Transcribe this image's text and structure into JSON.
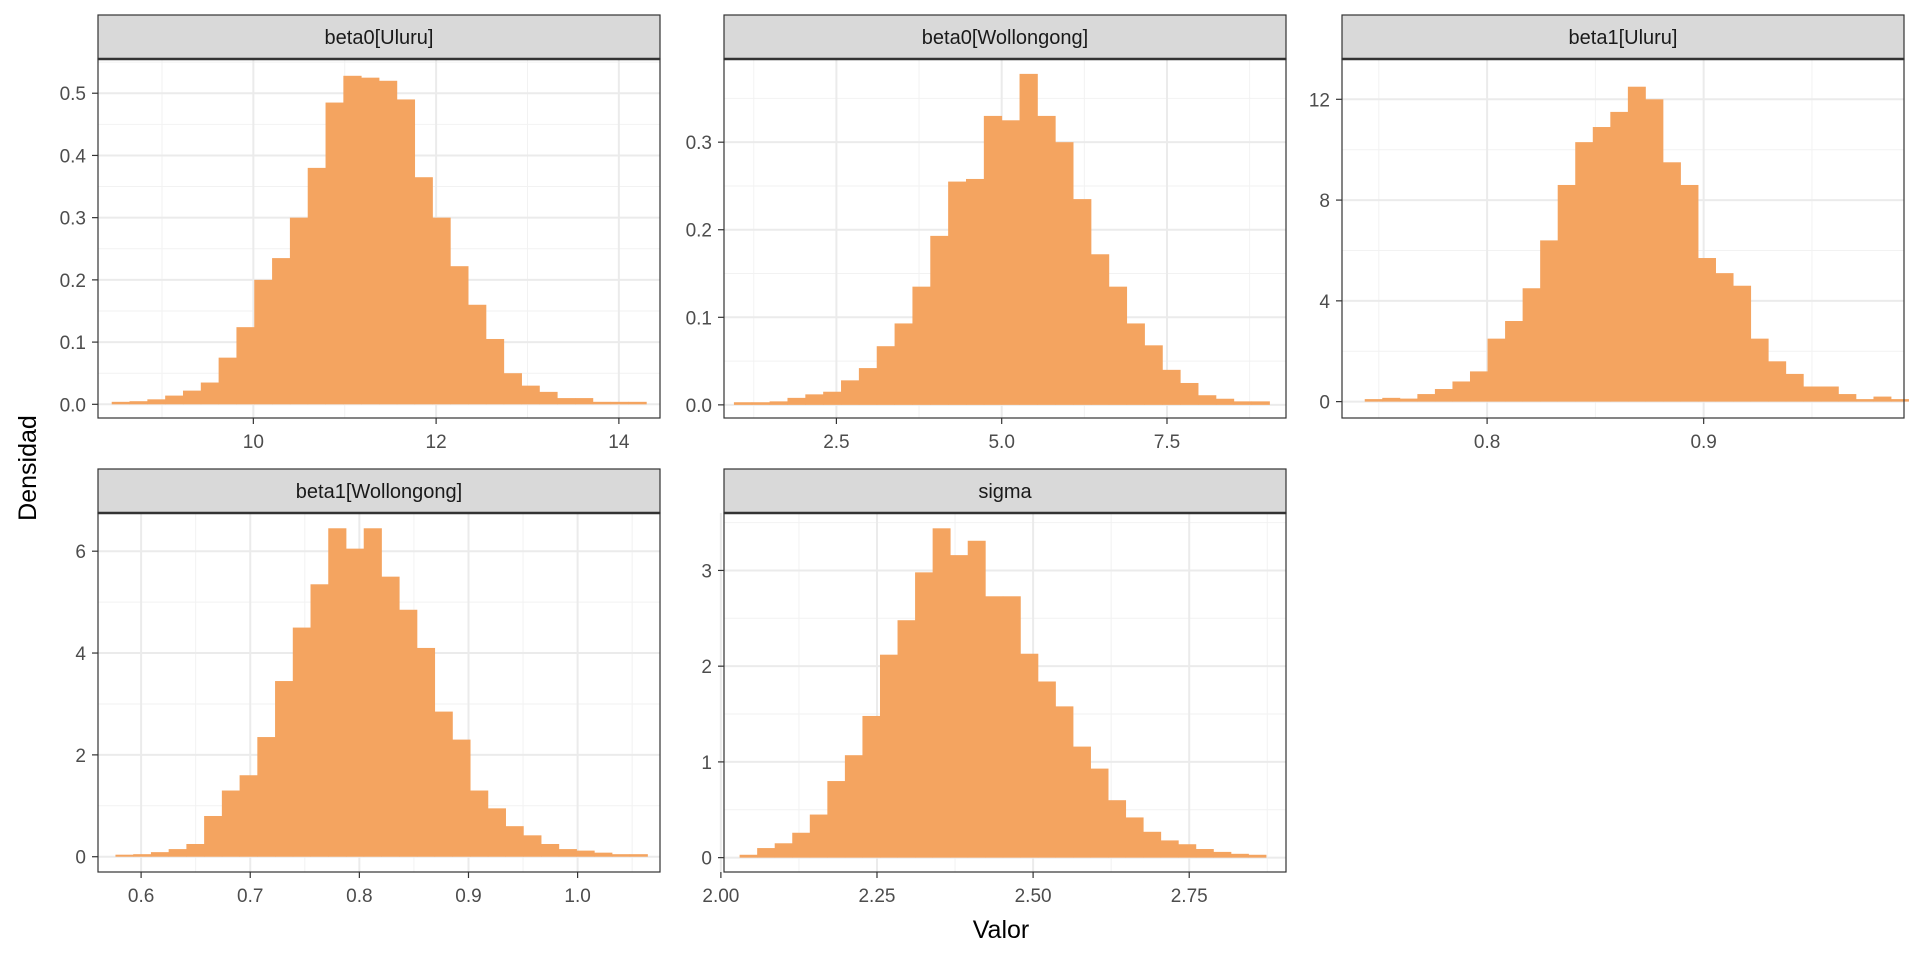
{
  "chart_data": {
    "type": "histogram_facets",
    "xlabel": "Valor",
    "ylabel": "Densidad",
    "grid": true,
    "bar_color": "#F4A460",
    "panels": [
      {
        "title": "beta0[Uluru]",
        "bin_start": 8.45,
        "bin_width": 0.195,
        "values": [
          0.004,
          0.005,
          0.008,
          0.014,
          0.022,
          0.035,
          0.075,
          0.124,
          0.2,
          0.235,
          0.3,
          0.38,
          0.485,
          0.528,
          0.525,
          0.52,
          0.49,
          0.365,
          0.3,
          0.222,
          0.16,
          0.105,
          0.05,
          0.03,
          0.02,
          0.01,
          0.01,
          0.004,
          0.004,
          0.004
        ],
        "xlim": [
          8.3,
          14.45
        ],
        "ylim": [
          -0.022,
          0.555
        ],
        "xticks": [
          10,
          12,
          14
        ],
        "xticklabels": [
          "10",
          "12",
          "14"
        ],
        "yticks": [
          0,
          0.1,
          0.2,
          0.3,
          0.4,
          0.5
        ],
        "yticklabels": [
          "0.0",
          "0.1",
          "0.2",
          "0.3",
          "0.4",
          "0.5"
        ]
      },
      {
        "title": "beta0[Wollongong]",
        "bin_start": 0.95,
        "bin_width": 0.27,
        "values": [
          0.003,
          0.003,
          0.004,
          0.008,
          0.012,
          0.015,
          0.028,
          0.042,
          0.067,
          0.093,
          0.135,
          0.193,
          0.255,
          0.258,
          0.33,
          0.325,
          0.378,
          0.33,
          0.3,
          0.235,
          0.172,
          0.135,
          0.093,
          0.068,
          0.04,
          0.025,
          0.011,
          0.007,
          0.004,
          0.004
        ],
        "xlim": [
          0.8,
          9.3
        ],
        "ylim": [
          -0.015,
          0.395
        ],
        "xticks": [
          2.5,
          5.0,
          7.5
        ],
        "xticklabels": [
          "2.5",
          "5.0",
          "7.5"
        ],
        "yticks": [
          0,
          0.1,
          0.2,
          0.3
        ],
        "yticklabels": [
          "0.0",
          "0.1",
          "0.2",
          "0.3"
        ]
      },
      {
        "title": "beta1[Uluru]",
        "bin_start": 0.7435,
        "bin_width": 0.0081,
        "values": [
          0.1,
          0.15,
          0.12,
          0.3,
          0.5,
          0.8,
          1.2,
          2.5,
          3.2,
          4.5,
          6.4,
          8.6,
          10.3,
          10.9,
          11.5,
          12.5,
          12.0,
          9.5,
          8.6,
          5.7,
          5.1,
          4.6,
          2.5,
          1.6,
          1.1,
          0.6,
          0.6,
          0.3,
          0.1,
          0.2,
          0.1
        ],
        "xlim": [
          0.733,
          0.9925
        ],
        "ylim": [
          -0.65,
          13.6
        ],
        "xticks": [
          0.8,
          0.9
        ],
        "xticklabels": [
          "0.8",
          "0.9"
        ],
        "yticks": [
          0,
          4,
          8,
          12
        ],
        "yticklabels": [
          "0",
          "4",
          "8",
          "12"
        ]
      },
      {
        "title": "beta1[Wollongong]",
        "bin_start": 0.5765,
        "bin_width": 0.01625,
        "values": [
          0.04,
          0.05,
          0.09,
          0.15,
          0.25,
          0.8,
          1.3,
          1.6,
          2.35,
          3.45,
          4.5,
          5.35,
          6.45,
          6.05,
          6.45,
          5.5,
          4.85,
          4.1,
          2.85,
          2.3,
          1.3,
          0.95,
          0.6,
          0.42,
          0.25,
          0.15,
          0.12,
          0.08,
          0.05,
          0.05
        ],
        "xlim": [
          0.5605,
          1.0755
        ],
        "ylim": [
          -0.3,
          6.75
        ],
        "xticks": [
          0.6,
          0.7,
          0.8,
          0.9,
          1.0
        ],
        "xticklabels": [
          "0.6",
          "0.7",
          "0.8",
          "0.9",
          "1.0"
        ],
        "yticks": [
          0,
          2,
          4,
          6
        ],
        "yticklabels": [
          "0",
          "2",
          "4",
          "6"
        ]
      },
      {
        "title": "sigma",
        "bin_start": 2.03,
        "bin_width": 0.0281,
        "values": [
          0.03,
          0.1,
          0.15,
          0.26,
          0.45,
          0.8,
          1.07,
          1.48,
          2.12,
          2.48,
          2.98,
          3.44,
          3.16,
          3.31,
          2.73,
          2.73,
          2.13,
          1.84,
          1.58,
          1.16,
          0.93,
          0.6,
          0.42,
          0.27,
          0.18,
          0.14,
          0.09,
          0.06,
          0.04,
          0.03
        ],
        "xlim": [
          2.005,
          2.905
        ],
        "ylim": [
          -0.15,
          3.6
        ],
        "xticks": [
          2.0,
          2.25,
          2.5,
          2.75
        ],
        "xticklabels": [
          "2.00",
          "2.25",
          "2.50",
          "2.75"
        ],
        "yticks": [
          0,
          1,
          2,
          3
        ],
        "yticklabels": [
          "0",
          "1",
          "2",
          "3"
        ]
      }
    ]
  }
}
